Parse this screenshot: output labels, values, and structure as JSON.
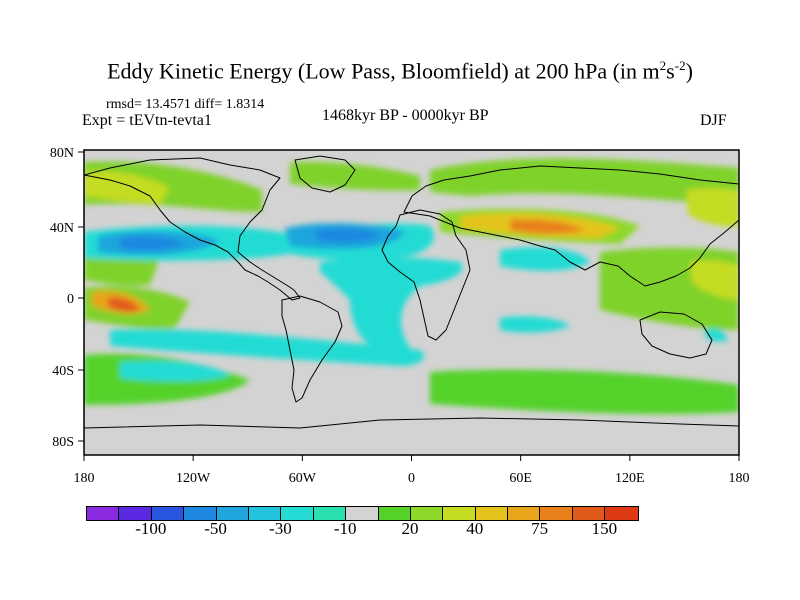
{
  "title": {
    "main": "Eddy Kinetic Energy (Low Pass, Bloomfield) at 200 hPa (in m",
    "sup1": "2",
    "mid": "s",
    "sup2": "-2",
    "end": ")"
  },
  "stats": "rmsd= 13.4571 diff= 1.8314",
  "experiment": "Expt = tEVtn-tevta1",
  "period": "1468kyr BP - 0000kyr BP",
  "season": "DJF",
  "axes": {
    "lat_labels": [
      "80N",
      "40N",
      "0",
      "40S",
      "80S"
    ],
    "lon_labels": [
      "180",
      "120W",
      "60W",
      "0",
      "60E",
      "120E",
      "180"
    ]
  },
  "colorbar": {
    "colors": [
      "#8a2be2",
      "#5a28e0",
      "#2a55e0",
      "#1e88e0",
      "#1fa6dc",
      "#22c3dc",
      "#24dcd4",
      "#2ae0b0",
      "#d3d3d3",
      "#55d22a",
      "#8ed82a",
      "#c4dc22",
      "#e4c41c",
      "#e8a41a",
      "#e8801c",
      "#e25a1a",
      "#dc3a14"
    ],
    "labels": [
      "-100",
      "-50",
      "-30",
      "-10",
      "20",
      "40",
      "75",
      "150"
    ],
    "label_boundary_index": [
      2,
      4,
      6,
      8,
      10,
      12,
      14,
      16
    ]
  },
  "colors": {
    "land_bg": "#d3d3d3",
    "coast": "#000000"
  }
}
